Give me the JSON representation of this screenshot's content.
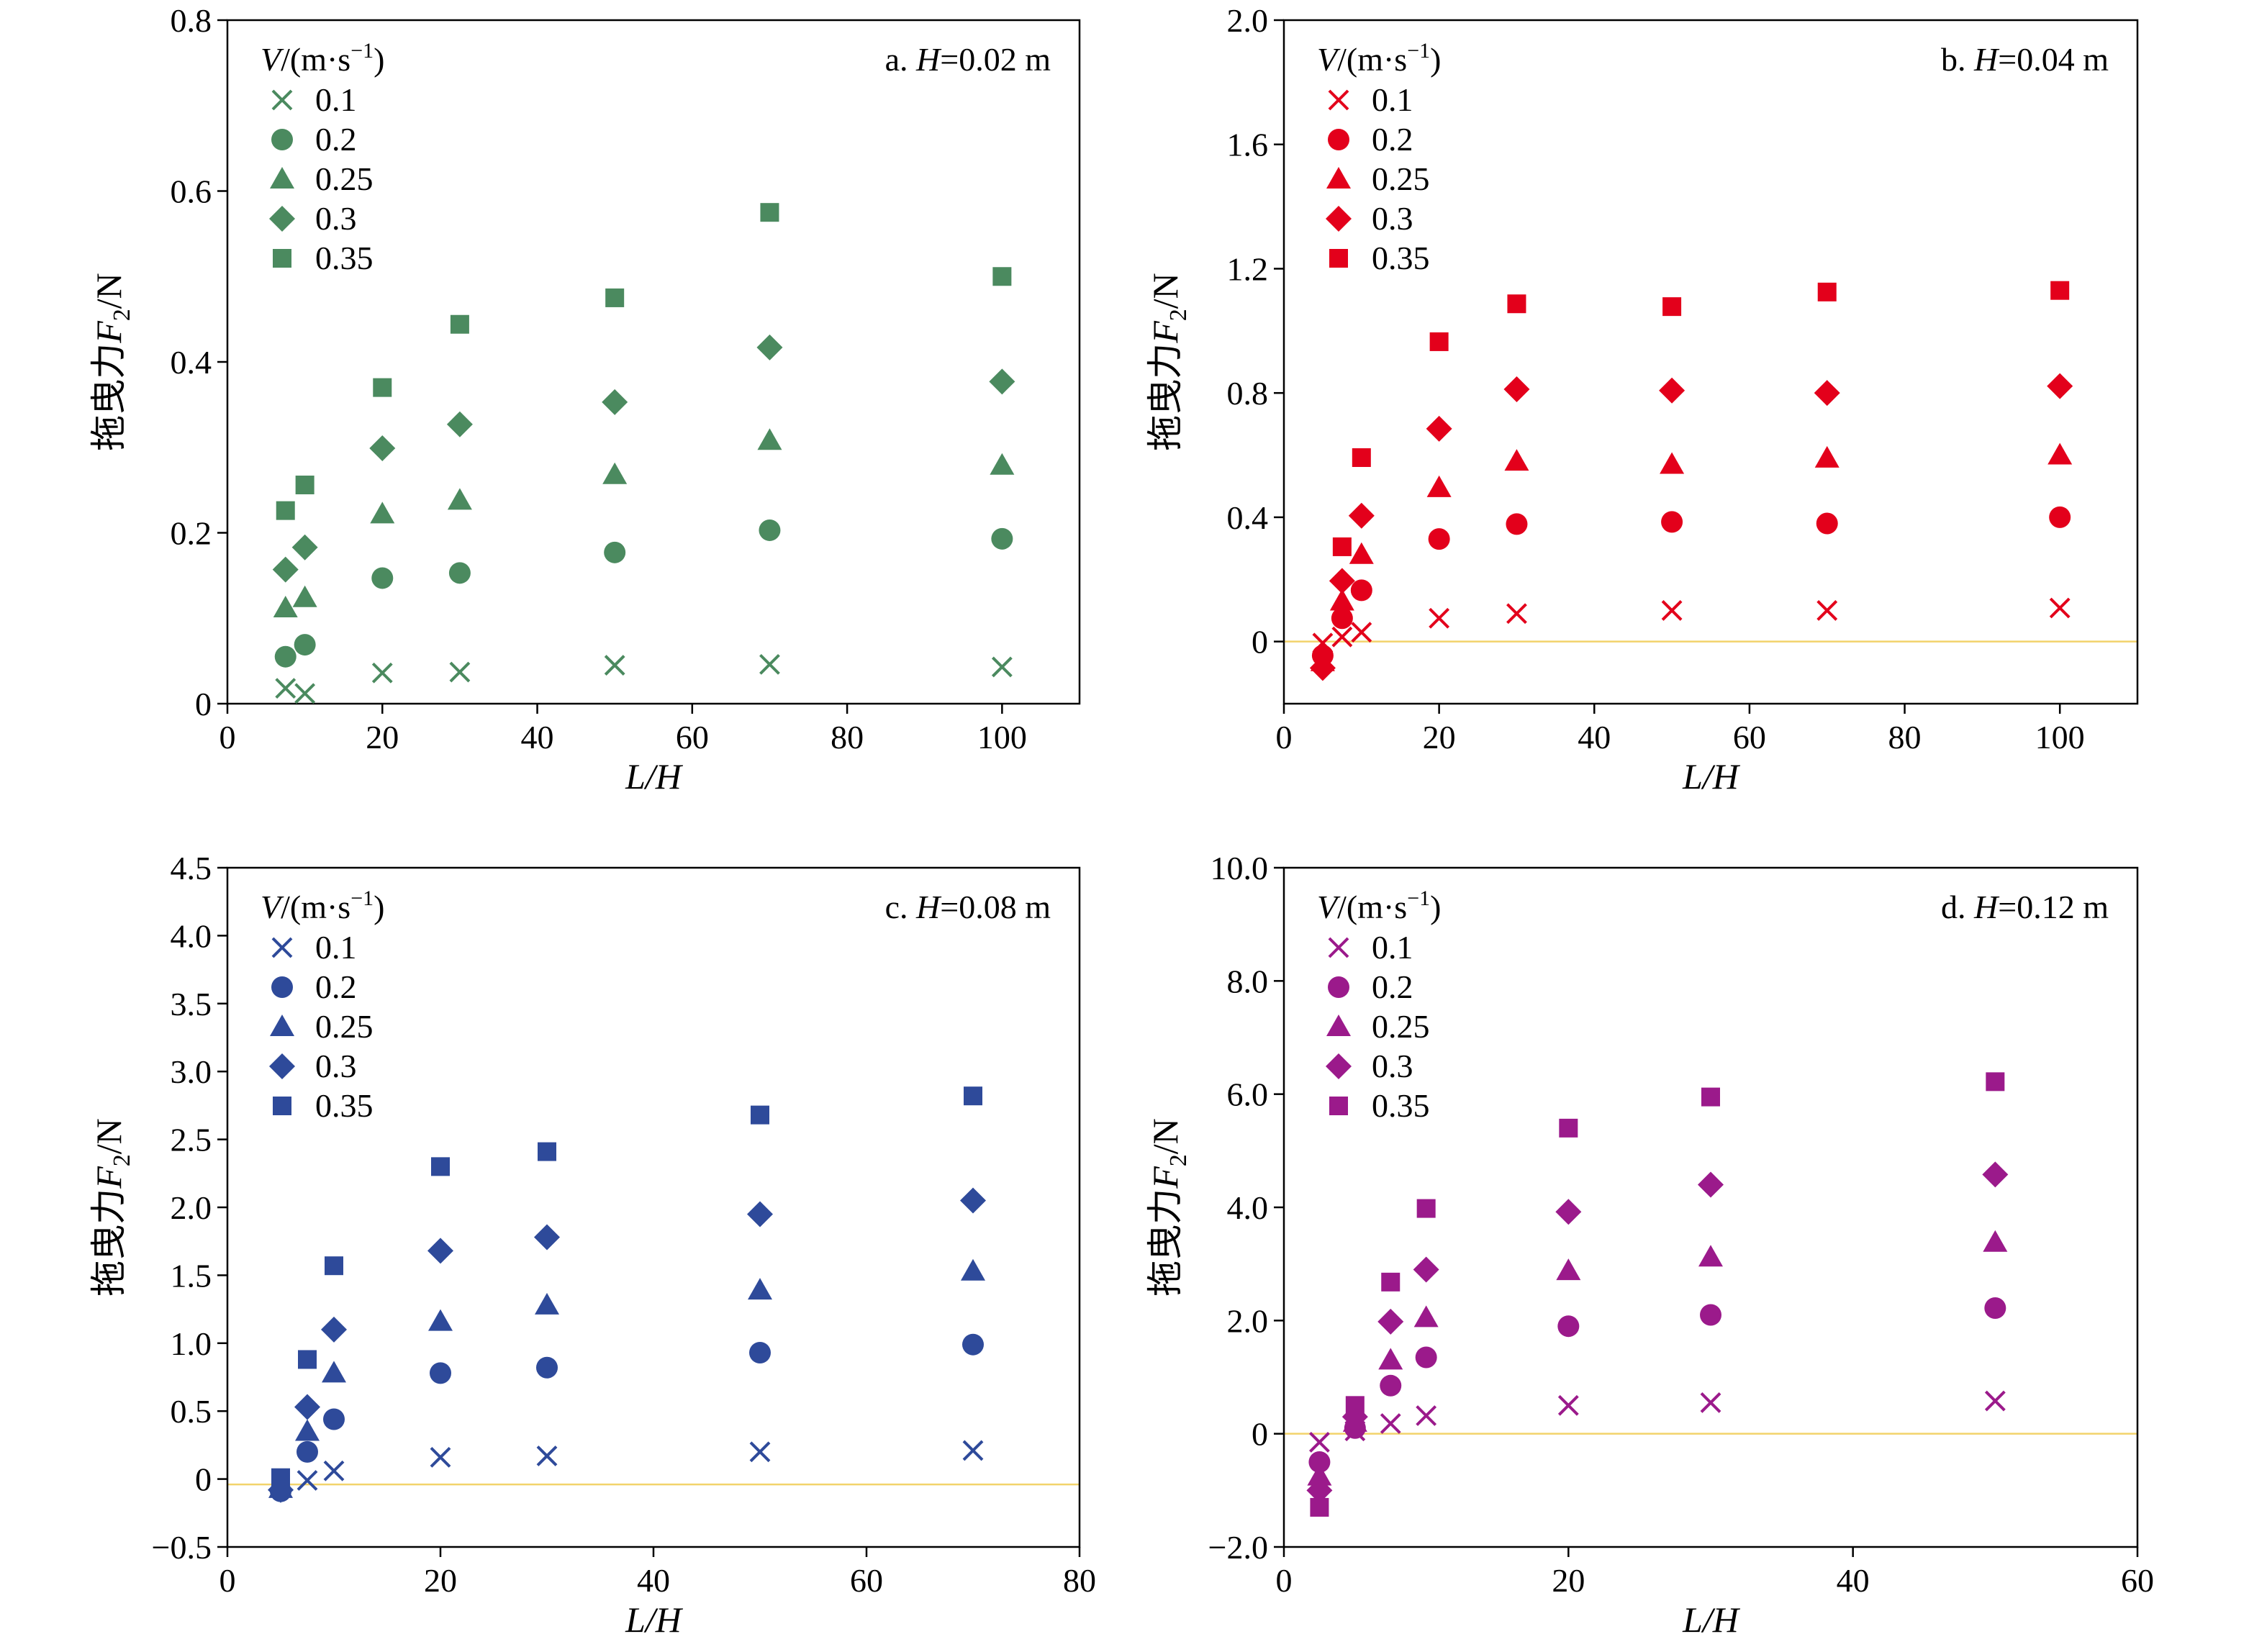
{
  "chart_data": [
    {
      "type": "scatter",
      "panel_label": "a. H=0.02 m",
      "panel_parts": [
        "a. ",
        "H",
        "=0.02 m"
      ],
      "xlabel": "L/H",
      "ylabel": "拖曳力F2/N",
      "ylabel_parts": [
        "拖曳力",
        "F",
        "2",
        "/N"
      ],
      "xlim": [
        0,
        110
      ],
      "ylim": [
        0,
        0.8
      ],
      "xticks": [
        0,
        20,
        40,
        60,
        80,
        100
      ],
      "xtick_labels": [
        "0",
        "20",
        "40",
        "60",
        "80",
        "100"
      ],
      "yticks": [
        0,
        0.2,
        0.4,
        0.6,
        0.8
      ],
      "ytick_labels": [
        "0",
        "0.2",
        "0.4",
        "0.6",
        "0.8"
      ],
      "zero_line": false,
      "color": "#4b8a5f",
      "legend_title": "V/(m·s−1)",
      "legend_title_parts": [
        "V",
        "/(m·s",
        "−1",
        ")"
      ],
      "series": [
        {
          "name": "0.1",
          "marker": "x",
          "x": [
            7.5,
            10,
            20,
            30,
            50,
            70,
            100
          ],
          "y": [
            0.018,
            0.012,
            0.036,
            0.037,
            0.045,
            0.046,
            0.043
          ]
        },
        {
          "name": "0.2",
          "marker": "circle",
          "x": [
            7.5,
            10,
            20,
            30,
            50,
            70,
            100
          ],
          "y": [
            0.055,
            0.069,
            0.147,
            0.153,
            0.177,
            0.203,
            0.193
          ]
        },
        {
          "name": "0.25",
          "marker": "triangle",
          "x": [
            7.5,
            10,
            20,
            30,
            50,
            70,
            100
          ],
          "y": [
            0.112,
            0.124,
            0.222,
            0.238,
            0.268,
            0.308,
            0.279
          ]
        },
        {
          "name": "0.3",
          "marker": "diamond",
          "x": [
            7.5,
            10,
            20,
            30,
            50,
            70,
            100
          ],
          "y": [
            0.157,
            0.183,
            0.299,
            0.327,
            0.353,
            0.417,
            0.377
          ]
        },
        {
          "name": "0.35",
          "marker": "square",
          "x": [
            7.5,
            10,
            20,
            30,
            50,
            70,
            100
          ],
          "y": [
            0.226,
            0.256,
            0.37,
            0.444,
            0.475,
            0.575,
            0.5
          ]
        }
      ]
    },
    {
      "type": "scatter",
      "panel_label": "b. H=0.04 m",
      "panel_parts": [
        "b. ",
        "H",
        "=0.04 m"
      ],
      "xlabel": "L/H",
      "ylabel": "拖曳力F2/N",
      "ylabel_parts": [
        "拖曳力",
        "F",
        "2",
        "/N"
      ],
      "xlim": [
        0,
        110
      ],
      "ylim": [
        -0.2,
        2.0
      ],
      "xticks": [
        0,
        20,
        40,
        60,
        80,
        100
      ],
      "xtick_labels": [
        "0",
        "20",
        "40",
        "60",
        "80",
        "100"
      ],
      "yticks": [
        0,
        0.4,
        0.8,
        1.2,
        1.6,
        2.0
      ],
      "ytick_labels": [
        "0",
        "0.4",
        "0.8",
        "1.2",
        "1.6",
        "2.0"
      ],
      "zero_line": true,
      "zero_value": 0,
      "color": "#e3001b",
      "legend_title": "V/(m·s−1)",
      "legend_title_parts": [
        "V",
        "/(m·s",
        "−1",
        ")"
      ],
      "series": [
        {
          "name": "0.1",
          "marker": "x",
          "x": [
            5,
            7.5,
            10,
            20,
            30,
            50,
            70,
            100
          ],
          "y": [
            -0.005,
            0.015,
            0.03,
            0.075,
            0.09,
            0.1,
            0.1,
            0.108
          ]
        },
        {
          "name": "0.2",
          "marker": "circle",
          "x": [
            5,
            7.5,
            10,
            20,
            30,
            50,
            70,
            100
          ],
          "y": [
            -0.045,
            0.075,
            0.165,
            0.33,
            0.378,
            0.385,
            0.38,
            0.4
          ]
        },
        {
          "name": "0.25",
          "marker": "triangle",
          "x": [
            5,
            7.5,
            10,
            20,
            30,
            50,
            70,
            100
          ],
          "y": [
            -0.065,
            0.13,
            0.28,
            0.495,
            0.58,
            0.57,
            0.59,
            0.6
          ]
        },
        {
          "name": "0.3",
          "marker": "diamond",
          "x": [
            5,
            7.5,
            10,
            20,
            30,
            50,
            70,
            100
          ],
          "y": [
            -0.085,
            0.195,
            0.405,
            0.685,
            0.812,
            0.808,
            0.8,
            0.822
          ]
        },
        {
          "name": "0.35",
          "marker": "square",
          "x": [
            7.5,
            10,
            20,
            30,
            50,
            70,
            100
          ],
          "y": [
            0.305,
            0.592,
            0.965,
            1.087,
            1.078,
            1.125,
            1.13
          ]
        }
      ]
    },
    {
      "type": "scatter",
      "panel_label": "c. H=0.08 m",
      "panel_parts": [
        "c. ",
        "H",
        "=0.08 m"
      ],
      "xlabel": "L/H",
      "ylabel": "拖曳力F2/N",
      "ylabel_parts": [
        "拖曳力",
        "F",
        "2",
        "/N"
      ],
      "xlim": [
        0,
        80
      ],
      "ylim": [
        -0.5,
        4.5
      ],
      "xticks": [
        0,
        20,
        40,
        60,
        80
      ],
      "xtick_labels": [
        "0",
        "20",
        "40",
        "60",
        "80"
      ],
      "yticks": [
        -0.5,
        0,
        0.5,
        1.0,
        1.5,
        2.0,
        2.5,
        3.0,
        3.5,
        4.0,
        4.5
      ],
      "ytick_labels": [
        "−0.5",
        "0",
        "0.5",
        "1.0",
        "1.5",
        "2.0",
        "2.5",
        "3.0",
        "3.5",
        "4.0",
        "4.5"
      ],
      "zero_line": true,
      "zero_value": -0.04,
      "color": "#2e4a9a",
      "legend_title": "V/(m·s−1)",
      "legend_title_parts": [
        "V",
        "/(m·s",
        "−1",
        ")"
      ],
      "series": [
        {
          "name": "0.1",
          "marker": "x",
          "x": [
            7.5,
            10,
            20,
            30,
            50,
            70
          ],
          "y": [
            -0.01,
            0.06,
            0.16,
            0.17,
            0.2,
            0.21
          ]
        },
        {
          "name": "0.2",
          "marker": "circle",
          "x": [
            5,
            7.5,
            10,
            20,
            30,
            50,
            70
          ],
          "y": [
            -0.09,
            0.2,
            0.44,
            0.78,
            0.82,
            0.93,
            0.99
          ]
        },
        {
          "name": "0.25",
          "marker": "triangle",
          "x": [
            5,
            7.5,
            10,
            20,
            30,
            50,
            70
          ],
          "y": [
            -0.07,
            0.35,
            0.78,
            1.16,
            1.28,
            1.39,
            1.53
          ]
        },
        {
          "name": "0.3",
          "marker": "diamond",
          "x": [
            5,
            7.5,
            10,
            20,
            30,
            50,
            70
          ],
          "y": [
            -0.08,
            0.53,
            1.1,
            1.68,
            1.78,
            1.95,
            2.05
          ]
        },
        {
          "name": "0.35",
          "marker": "square",
          "x": [
            5,
            7.5,
            10,
            20,
            30,
            50,
            70
          ],
          "y": [
            0.01,
            0.88,
            1.57,
            2.3,
            2.41,
            2.68,
            2.82
          ]
        }
      ]
    },
    {
      "type": "scatter",
      "panel_label": "d. H=0.12 m",
      "panel_parts": [
        "d. ",
        "H",
        "=0.12 m"
      ],
      "xlabel": "L/H",
      "ylabel": "拖曳力F2/N",
      "ylabel_parts": [
        "拖曳力",
        "F",
        "2",
        "/N"
      ],
      "xlim": [
        0,
        60
      ],
      "ylim": [
        -2.0,
        10.0
      ],
      "xticks": [
        0,
        20,
        40,
        60
      ],
      "xtick_labels": [
        "0",
        "20",
        "40",
        "60"
      ],
      "yticks": [
        -2.0,
        0,
        2.0,
        4.0,
        6.0,
        8.0,
        10.0
      ],
      "ytick_labels": [
        "−2.0",
        "0",
        "2.0",
        "4.0",
        "6.0",
        "8.0",
        "10.0"
      ],
      "zero_line": true,
      "zero_value": 0,
      "color": "#9b1a8b",
      "legend_title": "V/(m·s−1)",
      "legend_title_parts": [
        "V",
        "/(m·s",
        "−1",
        ")"
      ],
      "series": [
        {
          "name": "0.1",
          "marker": "x",
          "x": [
            2.5,
            5,
            7.5,
            10,
            20,
            30,
            50
          ],
          "y": [
            -0.15,
            0.05,
            0.18,
            0.32,
            0.5,
            0.55,
            0.58
          ]
        },
        {
          "name": "0.2",
          "marker": "circle",
          "x": [
            2.5,
            5,
            7.5,
            10,
            20,
            30,
            50
          ],
          "y": [
            -0.5,
            0.1,
            0.85,
            1.35,
            1.9,
            2.1,
            2.22
          ]
        },
        {
          "name": "0.25",
          "marker": "triangle",
          "x": [
            2.5,
            5,
            7.5,
            10,
            20,
            30,
            50
          ],
          "y": [
            -0.75,
            0.2,
            1.3,
            2.05,
            2.88,
            3.12,
            3.38
          ]
        },
        {
          "name": "0.3",
          "marker": "diamond",
          "x": [
            2.5,
            5,
            7.5,
            10,
            20,
            30,
            50
          ],
          "y": [
            -1.0,
            0.3,
            1.98,
            2.9,
            3.92,
            4.4,
            4.58
          ]
        },
        {
          "name": "0.35",
          "marker": "square",
          "x": [
            2.5,
            5,
            7.5,
            10,
            20,
            30,
            50
          ],
          "y": [
            -1.3,
            0.5,
            2.68,
            3.98,
            5.4,
            5.95,
            6.22
          ]
        }
      ]
    }
  ]
}
